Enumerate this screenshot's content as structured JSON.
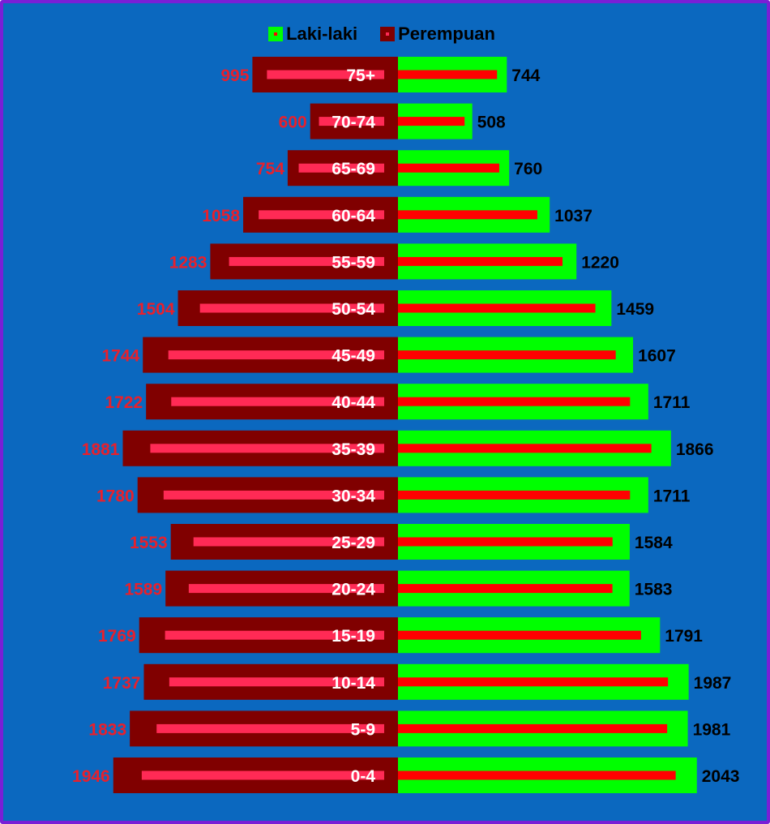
{
  "chart_data": {
    "type": "bar",
    "orientation": "horizontal-population-pyramid",
    "categories": [
      "75+",
      "70-74",
      "65-69",
      "60-64",
      "55-59",
      "50-54",
      "45-49",
      "40-44",
      "35-39",
      "30-34",
      "25-29",
      "20-24",
      "15-19",
      "10-14",
      "5-9",
      "0-4"
    ],
    "series": [
      {
        "name": "Laki-laki",
        "side": "right",
        "color": "#00ff00",
        "inner_color": "#ff0000",
        "values": [
          744,
          508,
          760,
          1037,
          1220,
          1459,
          1607,
          1711,
          1866,
          1711,
          1584,
          1583,
          1791,
          1987,
          1981,
          2043
        ]
      },
      {
        "name": "Perempuan",
        "side": "left",
        "color": "#800000",
        "inner_color": "#ff2a55",
        "values": [
          995,
          600,
          754,
          1058,
          1283,
          1504,
          1744,
          1722,
          1881,
          1780,
          1553,
          1589,
          1769,
          1737,
          1833,
          1946
        ]
      }
    ],
    "legend": "top-center",
    "grid": false,
    "label_colors": {
      "male": "#000000",
      "female": "#e8202c"
    },
    "background": "#0b68bf",
    "border": "#7a1fd6"
  }
}
